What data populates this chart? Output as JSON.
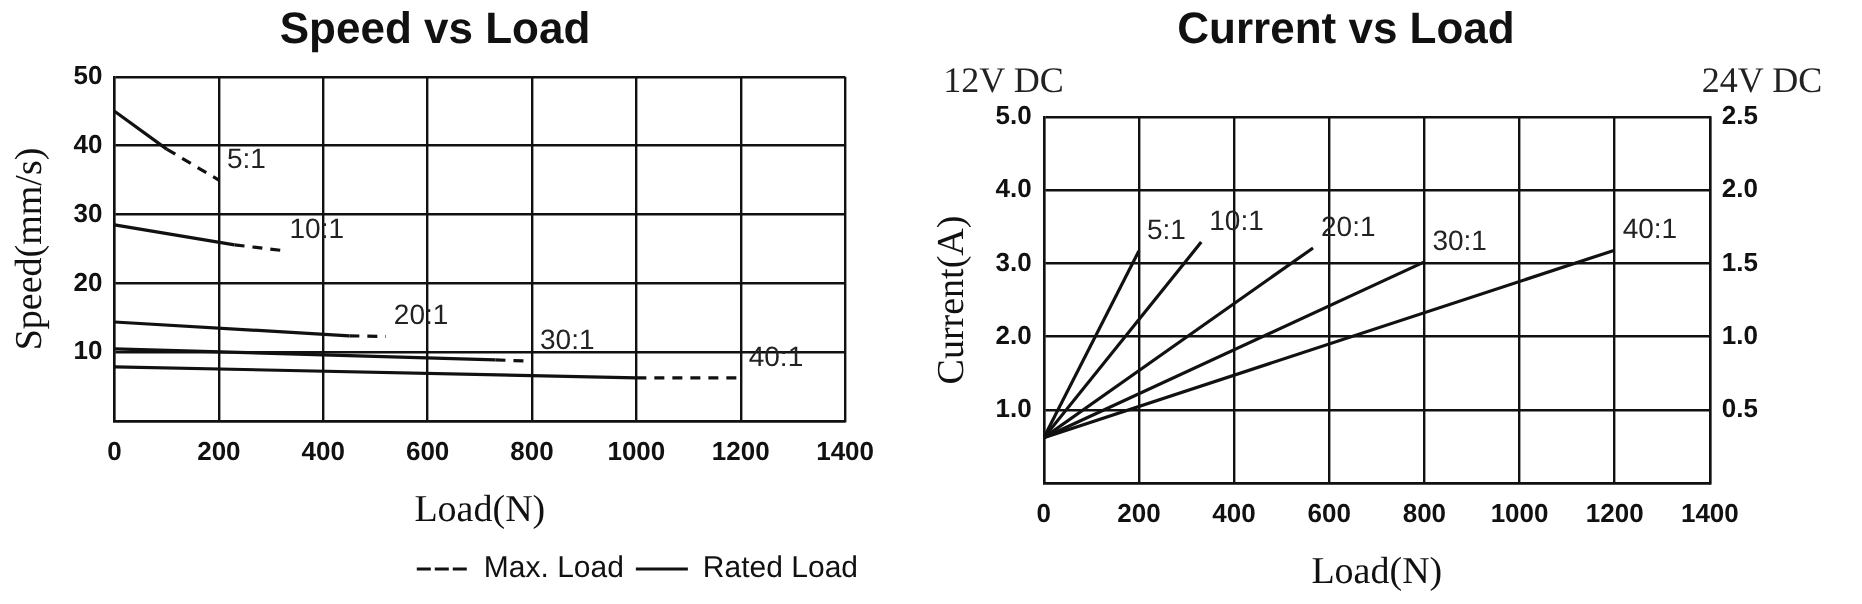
{
  "chart_data": [
    {
      "type": "line",
      "title": "Speed vs Load",
      "xlabel": "Load(N)",
      "ylabel": "Speed(mm/s)",
      "xlim": [
        0,
        1400
      ],
      "xticks": [
        0,
        200,
        400,
        600,
        800,
        1000,
        1200,
        1400
      ],
      "ylim": [
        0,
        50
      ],
      "yticks": [
        {
          "value": 0,
          "label": null
        },
        10,
        20,
        30,
        40,
        50
      ],
      "grid": true,
      "legend": "bottom right",
      "marker": "none",
      "series": [
        {
          "name": "Max. Load",
          "color": "#111111",
          "line_style": "dashed",
          "x": [
            100,
            200
          ],
          "values": [
            39.5,
            35
          ]
        },
        {
          "name": "Rated Load",
          "color": "#111111",
          "line_style": "solid",
          "x": [
            0,
            100
          ],
          "values": [
            45,
            39.5
          ]
        },
        {
          "color": "#111111",
          "line_style": "solid",
          "x": [
            0,
            230
          ],
          "values": [
            28.5,
            25.6
          ]
        },
        {
          "color": "#111111",
          "line_style": "dashed",
          "x": [
            230,
            320
          ],
          "values": [
            25.6,
            24.8
          ]
        },
        {
          "color": "#111111",
          "line_style": "solid",
          "x": [
            0,
            450
          ],
          "values": [
            14.4,
            12.4
          ]
        },
        {
          "color": "#111111",
          "line_style": "dashed",
          "x": [
            450,
            520
          ],
          "values": [
            12.4,
            12.3
          ]
        },
        {
          "color": "#111111",
          "line_style": "solid",
          "x": [
            0,
            730
          ],
          "values": [
            10.5,
            8.9
          ]
        },
        {
          "color": "#111111",
          "line_style": "dashed",
          "x": [
            730,
            800
          ],
          "values": [
            8.9,
            8.7
          ]
        },
        {
          "color": "#111111",
          "line_style": "solid",
          "x": [
            0,
            1000
          ],
          "values": [
            7.9,
            6.3
          ]
        },
        {
          "color": "#111111",
          "line_style": "dashed",
          "x": [
            1000,
            1200
          ],
          "values": [
            6.3,
            6.3
          ]
        }
      ],
      "annotations": [
        {
          "text": "5:1",
          "x": 200,
          "y": 35
        },
        {
          "text": "10:1",
          "x": 320,
          "y": 24.8
        },
        {
          "text": "20:1",
          "x": 520,
          "y": 12.3
        },
        {
          "text": "30:1",
          "x": 800,
          "y": 8.7
        },
        {
          "text": "40:1",
          "x": 1200,
          "y": 6.3
        }
      ]
    },
    {
      "type": "line",
      "title": "Current vs Load",
      "xlabel": "Load(N)",
      "ylabel": "Current(A)",
      "xlim": [
        0,
        1400
      ],
      "xticks": [
        0,
        200,
        400,
        600,
        800,
        1000,
        1200,
        1400
      ],
      "ylim": [
        0,
        5
      ],
      "yticks": [
        {
          "value": 0,
          "label": null
        },
        {
          "value": 1,
          "label": "1.0"
        },
        {
          "value": 2,
          "label": "2.0"
        },
        {
          "value": 3,
          "label": "3.0"
        },
        {
          "value": 4,
          "label": "4.0"
        },
        {
          "value": 5,
          "label": "5.0"
        }
      ],
      "y2lim": [
        0,
        2.5
      ],
      "y2ticks": [
        0.5,
        {
          "value": 1,
          "label": "1.0"
        },
        1.5,
        {
          "value": 2,
          "label": "2.0"
        },
        2.5
      ],
      "grid": true,
      "legend": false,
      "marker": "none",
      "series": [
        {
          "name": "5:1",
          "color": "#111111",
          "x": [
            0,
            200
          ],
          "values": [
            0.62,
            3.17
          ]
        },
        {
          "name": "10:1",
          "color": "#111111",
          "x": [
            0,
            331
          ],
          "values": [
            0.62,
            3.29
          ]
        },
        {
          "name": "20:1",
          "color": "#111111",
          "x": [
            0,
            566
          ],
          "values": [
            0.62,
            3.21
          ]
        },
        {
          "name": "30:1",
          "color": "#111111",
          "x": [
            0,
            800
          ],
          "values": [
            0.62,
            3.02
          ]
        },
        {
          "name": "40:1",
          "color": "#111111",
          "x": [
            0,
            1200
          ],
          "values": [
            0.62,
            3.18
          ]
        }
      ],
      "annotations": [
        "12V DC",
        "24V DC"
      ]
    }
  ]
}
